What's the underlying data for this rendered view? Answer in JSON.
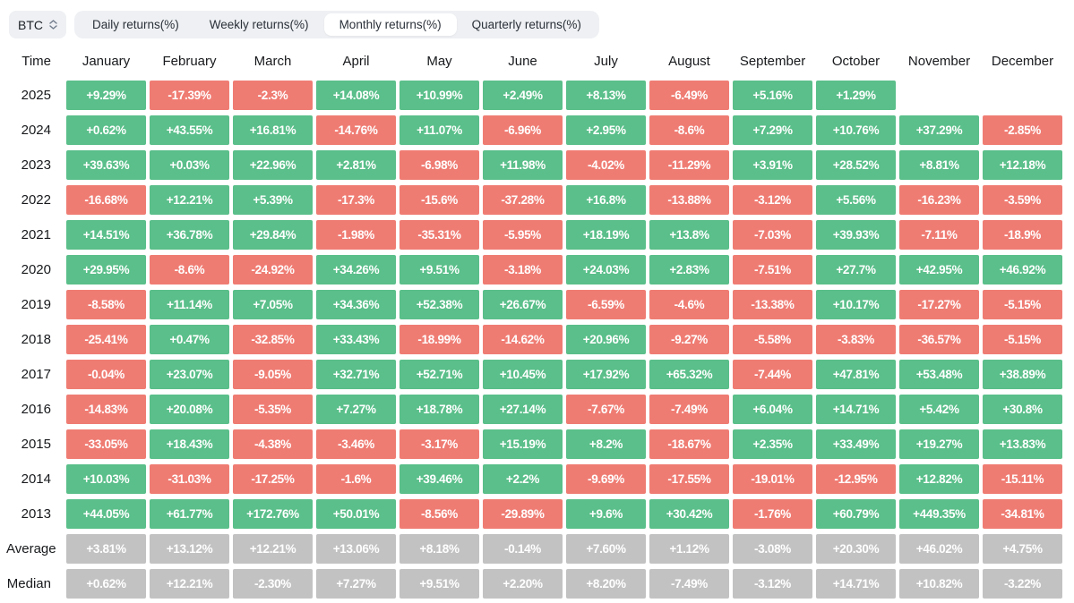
{
  "header": {
    "symbol": "BTC",
    "tabs": [
      {
        "label": "Daily returns(%)",
        "active": false
      },
      {
        "label": "Weekly returns(%)",
        "active": false
      },
      {
        "label": "Monthly returns(%)",
        "active": true
      },
      {
        "label": "Quarterly returns(%)",
        "active": false
      }
    ]
  },
  "table": {
    "time_label": "Time",
    "months": [
      "January",
      "February",
      "March",
      "April",
      "May",
      "June",
      "July",
      "August",
      "September",
      "October",
      "November",
      "December"
    ],
    "rows": [
      {
        "label": "2025",
        "type": "year",
        "cells": [
          "+9.29%",
          "-17.39%",
          "-2.3%",
          "+14.08%",
          "+10.99%",
          "+2.49%",
          "+8.13%",
          "-6.49%",
          "+5.16%",
          "+1.29%",
          "",
          ""
        ]
      },
      {
        "label": "2024",
        "type": "year",
        "cells": [
          "+0.62%",
          "+43.55%",
          "+16.81%",
          "-14.76%",
          "+11.07%",
          "-6.96%",
          "+2.95%",
          "-8.6%",
          "+7.29%",
          "+10.76%",
          "+37.29%",
          "-2.85%"
        ]
      },
      {
        "label": "2023",
        "type": "year",
        "cells": [
          "+39.63%",
          "+0.03%",
          "+22.96%",
          "+2.81%",
          "-6.98%",
          "+11.98%",
          "-4.02%",
          "-11.29%",
          "+3.91%",
          "+28.52%",
          "+8.81%",
          "+12.18%"
        ]
      },
      {
        "label": "2022",
        "type": "year",
        "cells": [
          "-16.68%",
          "+12.21%",
          "+5.39%",
          "-17.3%",
          "-15.6%",
          "-37.28%",
          "+16.8%",
          "-13.88%",
          "-3.12%",
          "+5.56%",
          "-16.23%",
          "-3.59%"
        ]
      },
      {
        "label": "2021",
        "type": "year",
        "cells": [
          "+14.51%",
          "+36.78%",
          "+29.84%",
          "-1.98%",
          "-35.31%",
          "-5.95%",
          "+18.19%",
          "+13.8%",
          "-7.03%",
          "+39.93%",
          "-7.11%",
          "-18.9%"
        ]
      },
      {
        "label": "2020",
        "type": "year",
        "cells": [
          "+29.95%",
          "-8.6%",
          "-24.92%",
          "+34.26%",
          "+9.51%",
          "-3.18%",
          "+24.03%",
          "+2.83%",
          "-7.51%",
          "+27.7%",
          "+42.95%",
          "+46.92%"
        ]
      },
      {
        "label": "2019",
        "type": "year",
        "cells": [
          "-8.58%",
          "+11.14%",
          "+7.05%",
          "+34.36%",
          "+52.38%",
          "+26.67%",
          "-6.59%",
          "-4.6%",
          "-13.38%",
          "+10.17%",
          "-17.27%",
          "-5.15%"
        ]
      },
      {
        "label": "2018",
        "type": "year",
        "cells": [
          "-25.41%",
          "+0.47%",
          "-32.85%",
          "+33.43%",
          "-18.99%",
          "-14.62%",
          "+20.96%",
          "-9.27%",
          "-5.58%",
          "-3.83%",
          "-36.57%",
          "-5.15%"
        ]
      },
      {
        "label": "2017",
        "type": "year",
        "cells": [
          "-0.04%",
          "+23.07%",
          "-9.05%",
          "+32.71%",
          "+52.71%",
          "+10.45%",
          "+17.92%",
          "+65.32%",
          "-7.44%",
          "+47.81%",
          "+53.48%",
          "+38.89%"
        ]
      },
      {
        "label": "2016",
        "type": "year",
        "cells": [
          "-14.83%",
          "+20.08%",
          "-5.35%",
          "+7.27%",
          "+18.78%",
          "+27.14%",
          "-7.67%",
          "-7.49%",
          "+6.04%",
          "+14.71%",
          "+5.42%",
          "+30.8%"
        ]
      },
      {
        "label": "2015",
        "type": "year",
        "cells": [
          "-33.05%",
          "+18.43%",
          "-4.38%",
          "-3.46%",
          "-3.17%",
          "+15.19%",
          "+8.2%",
          "-18.67%",
          "+2.35%",
          "+33.49%",
          "+19.27%",
          "+13.83%"
        ]
      },
      {
        "label": "2014",
        "type": "year",
        "cells": [
          "+10.03%",
          "-31.03%",
          "-17.25%",
          "-1.6%",
          "+39.46%",
          "+2.2%",
          "-9.69%",
          "-17.55%",
          "-19.01%",
          "-12.95%",
          "+12.82%",
          "-15.11%"
        ]
      },
      {
        "label": "2013",
        "type": "year",
        "cells": [
          "+44.05%",
          "+61.77%",
          "+172.76%",
          "+50.01%",
          "-8.56%",
          "-29.89%",
          "+9.6%",
          "+30.42%",
          "-1.76%",
          "+60.79%",
          "+449.35%",
          "-34.81%"
        ]
      },
      {
        "label": "Average",
        "type": "stat",
        "cells": [
          "+3.81%",
          "+13.12%",
          "+12.21%",
          "+13.06%",
          "+8.18%",
          "-0.14%",
          "+7.60%",
          "+1.12%",
          "-3.08%",
          "+20.30%",
          "+46.02%",
          "+4.75%"
        ]
      },
      {
        "label": "Median",
        "type": "stat",
        "cells": [
          "+0.62%",
          "+12.21%",
          "-2.30%",
          "+7.27%",
          "+9.51%",
          "+2.20%",
          "+8.20%",
          "-7.49%",
          "-3.12%",
          "+14.71%",
          "+10.82%",
          "-3.22%"
        ]
      }
    ]
  },
  "colors": {
    "positive": "#5abf8a",
    "negative": "#ef7c73",
    "neutral": "#c2c2c2",
    "chip_background": "#eef0f3"
  }
}
